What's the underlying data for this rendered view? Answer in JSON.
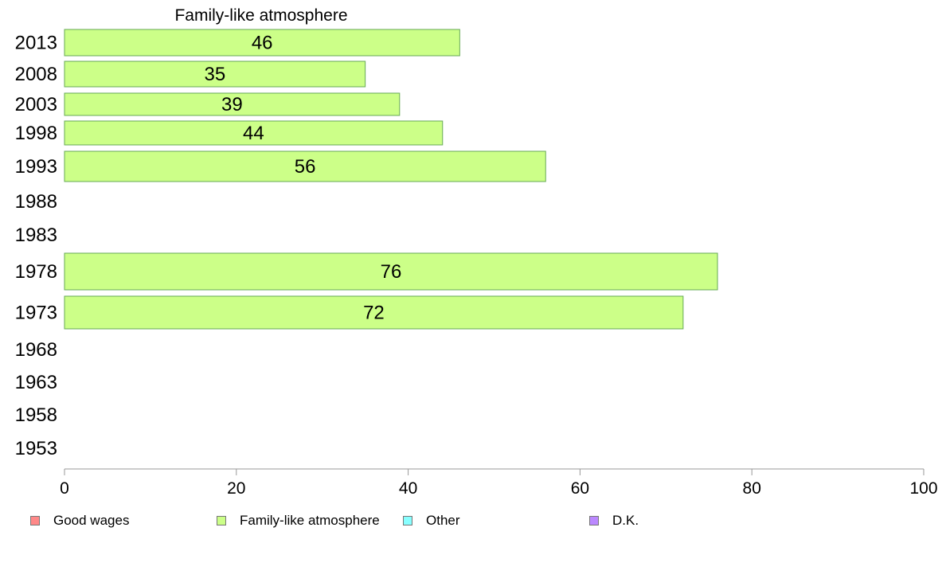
{
  "chart_data": {
    "type": "bar",
    "orientation": "horizontal",
    "title": "Family-like atmosphere",
    "categories": [
      "2013",
      "2008",
      "2003",
      "1998",
      "1993",
      "1988",
      "1983",
      "1978",
      "1973",
      "1968",
      "1963",
      "1958",
      "1953"
    ],
    "series": [
      {
        "name": "Family-like atmosphere",
        "values": [
          46,
          35,
          39,
          44,
          56,
          null,
          null,
          76,
          72,
          null,
          null,
          null,
          null
        ],
        "color": "#ccff88"
      }
    ],
    "xlim": [
      0,
      100
    ],
    "xticks": [
      0,
      20,
      40,
      60,
      80,
      100
    ],
    "xtick_labels": [
      "0",
      "20",
      "40",
      "60",
      "80",
      "100"
    ],
    "grid": false,
    "legend_position": "bottom",
    "legend": [
      {
        "label": "Good wages",
        "color": "#ff8888"
      },
      {
        "label": "Family-like atmosphere",
        "color": "#ccff88"
      },
      {
        "label": "Other",
        "color": "#88ffff"
      },
      {
        "label": "D.K.",
        "color": "#bb88ff"
      }
    ],
    "bar_edge_color": "#66aa55",
    "axis_color": "#999999"
  }
}
